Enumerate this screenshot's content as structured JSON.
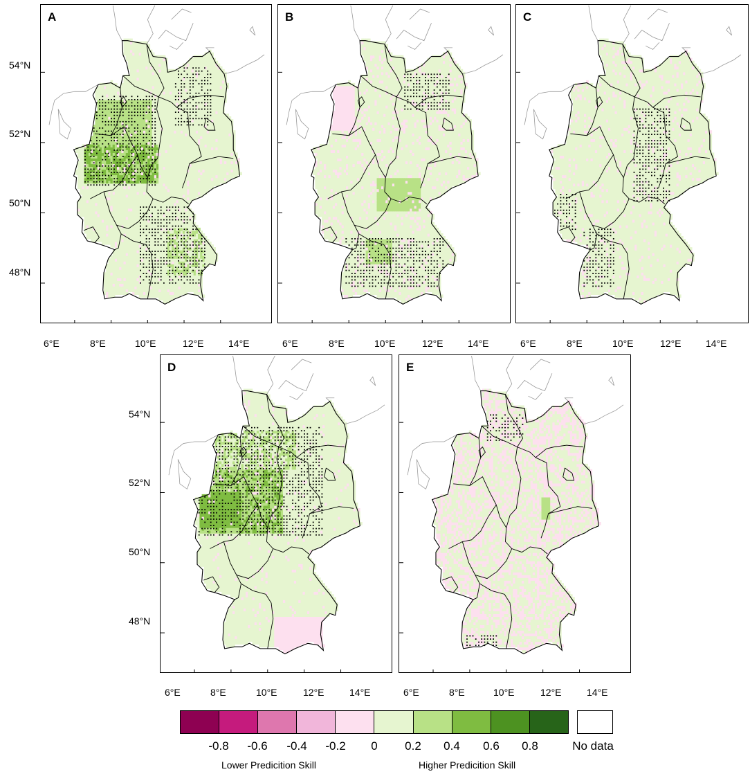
{
  "panels": [
    {
      "letter": "A",
      "pattern": "A"
    },
    {
      "letter": "B",
      "pattern": "B"
    },
    {
      "letter": "C",
      "pattern": "C"
    },
    {
      "letter": "D",
      "pattern": "D"
    },
    {
      "letter": "E",
      "pattern": "E"
    }
  ],
  "axes": {
    "lat_labels": [
      "54°N",
      "52°N",
      "50°N",
      "48°N"
    ],
    "lon_labels": [
      "6°E",
      "8°E",
      "10°E",
      "12°E",
      "14°E"
    ]
  },
  "legend": {
    "colors": [
      "#8e0152",
      "#c51b7d",
      "#de77ae",
      "#f1b6da",
      "#fde0ef",
      "#e6f5d0",
      "#b8e186",
      "#7fbc41",
      "#4d9221",
      "#276419"
    ],
    "tick_labels": [
      "-0.8",
      "-0.6",
      "-0.4",
      "-0.2",
      "0",
      "0.2",
      "0.4",
      "0.6",
      "0.8"
    ],
    "no_data_label": "No data",
    "lower_skill_label": "Lower Predicition Skill",
    "higher_skill_label": "Higher Predicition Skill"
  }
}
